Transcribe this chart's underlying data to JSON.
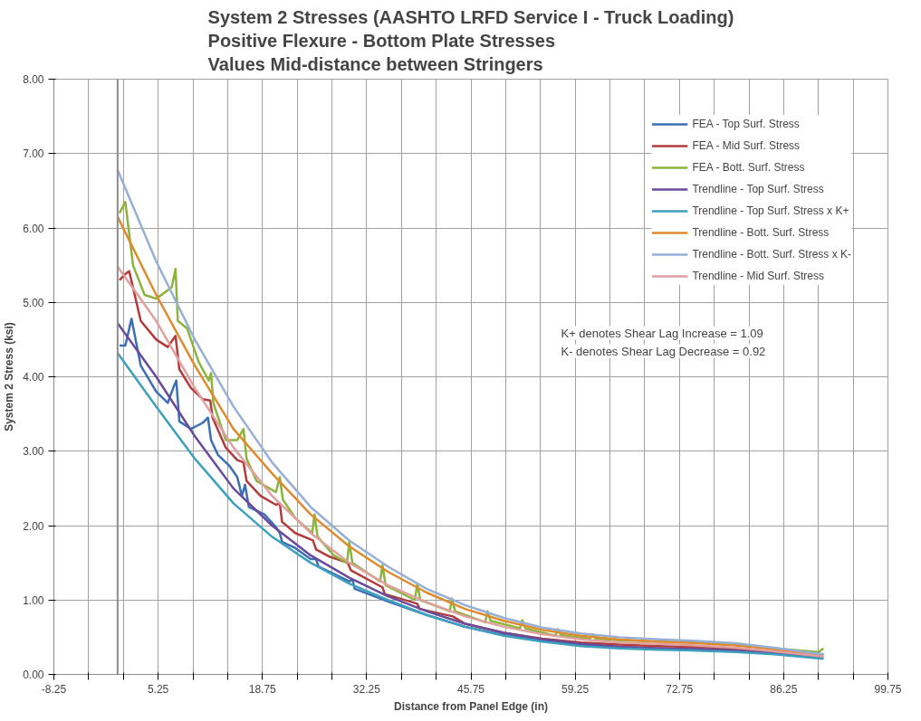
{
  "chart_data": {
    "type": "line",
    "title": "System 2 Stresses (AASHTO LRFD Service I - Truck Loading)\nPositive Flexure - Bottom Plate Stresses\nValues Mid-distance between Stringers",
    "xlabel": "Distance from Panel Edge (in)",
    "ylabel": "System 2 Stress (ksi)",
    "xlim": [
      -8.25,
      99.75
    ],
    "ylim": [
      0,
      8
    ],
    "xticks": [
      -8.25,
      {
        "value": -3.75,
        "label": null
      },
      {
        "value": 0.75,
        "label": null
      },
      5.25,
      {
        "value": 9.75,
        "label": null
      },
      {
        "value": 14.25,
        "label": null
      },
      18.75,
      {
        "value": 23.25,
        "label": null
      },
      {
        "value": 27.75,
        "label": null
      },
      32.25,
      {
        "value": 36.75,
        "label": null
      },
      {
        "value": 41.25,
        "label": null
      },
      45.75,
      {
        "value": 50.25,
        "label": null
      },
      {
        "value": 54.75,
        "label": null
      },
      59.25,
      {
        "value": 63.75,
        "label": null
      },
      {
        "value": 68.25,
        "label": null
      },
      72.75,
      {
        "value": 77.25,
        "label": null
      },
      {
        "value": 81.75,
        "label": null
      },
      86.25,
      {
        "value": 90.75,
        "label": null
      },
      {
        "value": 95.25,
        "label": null
      },
      99.75
    ],
    "yticks": [
      {
        "value": 0,
        "label": "0.00"
      },
      {
        "value": 1,
        "label": "1.00"
      },
      {
        "value": 2,
        "label": "2.00"
      },
      {
        "value": 3,
        "label": "3.00"
      },
      {
        "value": 4,
        "label": "4.00"
      },
      {
        "value": 5,
        "label": "5.00"
      },
      {
        "value": 6,
        "label": "6.00"
      },
      {
        "value": 7,
        "label": "7.00"
      },
      {
        "value": 8,
        "label": "8.00"
      }
    ],
    "grid": true,
    "legend": "top right",
    "marker": "none",
    "line_style": "solid",
    "ref_lines": [
      {
        "axis": "x",
        "value": 0,
        "label": null,
        "color": "#8c8c8c"
      }
    ],
    "annotations": [
      "K+ denotes Shear Lag Increase = 1.09",
      "K- denotes Shear Lag Decrease = 0.92"
    ],
    "series": [
      {
        "name": "FEA - Top Surf. Stress",
        "color": "#3c6eb4",
        "x": [
          0.25,
          1,
          1.8,
          3,
          5,
          6.5,
          7.2,
          7.6,
          8,
          9.5,
          11,
          11.7,
          12.1,
          13,
          14.5,
          15.5,
          16.1,
          16.5,
          17,
          19,
          20.5,
          21,
          21.3,
          23,
          25,
          25.7,
          26,
          28,
          30,
          30.4,
          30.7,
          35,
          40,
          45,
          50,
          55,
          60,
          65,
          70,
          75,
          80,
          85,
          91.4
        ],
        "values": [
          4.42,
          4.42,
          4.78,
          4.15,
          3.8,
          3.65,
          3.85,
          3.95,
          3.4,
          3.3,
          3.38,
          3.45,
          3.15,
          2.95,
          2.8,
          2.65,
          2.4,
          2.55,
          2.25,
          2.15,
          1.98,
          1.9,
          1.78,
          1.7,
          1.55,
          1.55,
          1.45,
          1.35,
          1.25,
          1.28,
          1.15,
          0.98,
          0.8,
          0.64,
          0.53,
          0.45,
          0.4,
          0.37,
          0.35,
          0.34,
          0.33,
          0.29,
          0.22
        ]
      },
      {
        "name": "FEA - Mid Surf. Stress",
        "color": "#b23c3c",
        "x": [
          0.25,
          1,
          1.5,
          3,
          5,
          6.5,
          7.5,
          8,
          9.5,
          11,
          12,
          12.3,
          14,
          15.5,
          16.3,
          16.7,
          18.5,
          20.5,
          21,
          21.3,
          23,
          25.3,
          25.7,
          27.5,
          29.8,
          30.2,
          34.3,
          34.6,
          38.8,
          39.1,
          43.4,
          45,
          50,
          55,
          60,
          65,
          70,
          75,
          80,
          85,
          91,
          91.4
        ],
        "values": [
          5.3,
          5.38,
          5.42,
          4.75,
          4.5,
          4.4,
          4.55,
          4.1,
          3.85,
          3.7,
          3.68,
          3.45,
          3.05,
          2.88,
          2.85,
          2.6,
          2.4,
          2.28,
          2.3,
          2.05,
          1.9,
          1.8,
          1.68,
          1.58,
          1.5,
          1.4,
          1.17,
          1.08,
          0.95,
          0.88,
          0.78,
          0.68,
          0.56,
          0.48,
          0.43,
          0.4,
          0.38,
          0.37,
          0.35,
          0.31,
          0.25,
          0.28
        ]
      },
      {
        "name": "FEA - Bott. Surf. Stress",
        "color": "#8cb43c",
        "x": [
          0.25,
          1,
          2,
          3.5,
          5,
          7,
          7.5,
          7.8,
          9,
          10.5,
          11.8,
          12.1,
          12.4,
          14,
          15.5,
          16.3,
          16.7,
          18,
          20.5,
          21,
          21.4,
          23,
          25.2,
          25.5,
          25.9,
          28,
          29.7,
          30,
          30.4,
          34,
          34.3,
          34.7,
          38.5,
          38.8,
          39.2,
          43,
          43.3,
          43.7,
          47.6,
          47.9,
          48.3,
          52.1,
          52.4,
          52.8,
          56.7,
          57,
          57.4,
          61.2,
          61.5,
          61.9,
          65,
          70,
          75,
          80,
          85,
          90.8,
          91.4
        ],
        "values": [
          6.2,
          6.35,
          5.5,
          5.1,
          5.05,
          5.2,
          5.45,
          4.75,
          4.65,
          4.2,
          3.95,
          4.05,
          3.65,
          3.15,
          3.15,
          3.3,
          2.9,
          2.6,
          2.45,
          2.65,
          2.35,
          2.1,
          1.9,
          2.15,
          1.85,
          1.6,
          1.5,
          1.78,
          1.5,
          1.25,
          1.47,
          1.2,
          1.0,
          1.22,
          1.0,
          0.85,
          1.02,
          0.85,
          0.7,
          0.85,
          0.72,
          0.62,
          0.73,
          0.62,
          0.52,
          0.61,
          0.53,
          0.48,
          0.54,
          0.48,
          0.46,
          0.44,
          0.43,
          0.4,
          0.35,
          0.3,
          0.35
        ]
      },
      {
        "name": "Trendline - Top Surf. Stress",
        "color": "#6a4a9a",
        "x": [
          0,
          5,
          10,
          15,
          20,
          25,
          30,
          35,
          40,
          45,
          50,
          55,
          60,
          65,
          70,
          75,
          80,
          85,
          91.4
        ],
        "values": [
          4.72,
          4.0,
          3.2,
          2.5,
          2.0,
          1.6,
          1.3,
          1.05,
          0.85,
          0.68,
          0.56,
          0.47,
          0.41,
          0.37,
          0.35,
          0.34,
          0.32,
          0.28,
          0.22
        ]
      },
      {
        "name": "Trendline - Top Surf. Stress x K+",
        "color": "#3ca0be",
        "x": [
          0,
          5,
          10,
          15,
          20,
          25,
          30,
          35,
          40,
          45,
          50,
          55,
          60,
          65,
          70,
          75,
          80,
          85,
          91.4
        ],
        "values": [
          4.32,
          3.6,
          2.9,
          2.3,
          1.85,
          1.5,
          1.22,
          1.0,
          0.8,
          0.64,
          0.52,
          0.44,
          0.38,
          0.35,
          0.33,
          0.32,
          0.3,
          0.27,
          0.21
        ]
      },
      {
        "name": "Trendline - Bott. Surf. Stress",
        "color": "#e08a2c",
        "x": [
          0,
          5,
          10,
          15,
          20,
          25,
          30,
          35,
          40,
          45,
          50,
          55,
          60,
          65,
          70,
          75,
          80,
          85,
          91.4
        ],
        "values": [
          6.15,
          5.1,
          4.15,
          3.3,
          2.7,
          2.15,
          1.72,
          1.38,
          1.1,
          0.88,
          0.72,
          0.6,
          0.52,
          0.47,
          0.44,
          0.42,
          0.39,
          0.34,
          0.25
        ]
      },
      {
        "name": "Trendline - Bott. Surf. Stress x K-",
        "color": "#96afd7",
        "x": [
          0,
          5,
          10,
          15,
          20,
          25,
          30,
          35,
          40,
          45,
          50,
          55,
          60,
          65,
          70,
          75,
          80,
          85,
          91.4
        ],
        "values": [
          6.78,
          5.55,
          4.5,
          3.6,
          2.85,
          2.25,
          1.8,
          1.45,
          1.15,
          0.93,
          0.76,
          0.63,
          0.55,
          0.5,
          0.47,
          0.45,
          0.42,
          0.36,
          0.27
        ]
      },
      {
        "name": "Trendline - Mid Surf. Stress",
        "color": "#e0a0a0",
        "x": [
          0,
          5,
          10,
          15,
          20,
          25,
          30,
          35,
          40,
          45,
          50,
          55,
          60,
          65,
          70,
          75,
          80,
          85,
          91.4
        ],
        "values": [
          5.48,
          4.75,
          3.85,
          3.05,
          2.4,
          1.9,
          1.5,
          1.2,
          0.97,
          0.78,
          0.64,
          0.54,
          0.47,
          0.43,
          0.41,
          0.39,
          0.36,
          0.31,
          0.24
        ]
      }
    ]
  }
}
